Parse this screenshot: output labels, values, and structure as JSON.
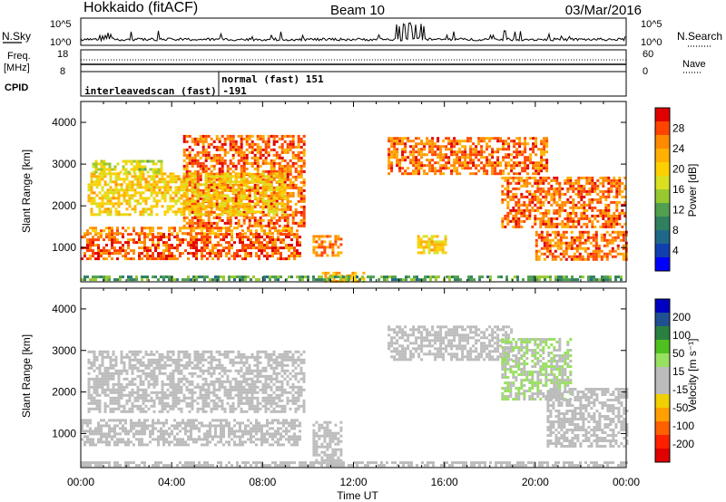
{
  "header": {
    "site": "Hokkaido (fitACF)",
    "beam": "Beam 10",
    "date": "03/Mar/2016"
  },
  "top_panels": {
    "nsky_label": "N.Sky",
    "nsearch_label": "N.Search",
    "log_ticks": [
      "10^5",
      "10^0"
    ],
    "freq_label_1": "Freq.",
    "freq_label_2": "[MHz]",
    "freq_ticks": [
      "18",
      "8"
    ],
    "nave_ticks": [
      "60",
      "0"
    ],
    "nave_label": "Nave",
    "cpid_label": "CPID",
    "cpid_names": [
      "normal (fast) 151",
      "interleavedscan (fast) -191"
    ]
  },
  "colorbars": {
    "power": {
      "label": "Power [dB]",
      "ticks": [
        "28",
        "24",
        "20",
        "16",
        "12",
        "8",
        "4"
      ],
      "colors": [
        "#e00000",
        "#ff4400",
        "#ff8a00",
        "#ffb000",
        "#ffd000",
        "#d8e020",
        "#98c830",
        "#50a050",
        "#308060",
        "#206888",
        "#1040b0",
        "#0000ff"
      ]
    },
    "velocity": {
      "label": "Velocity [m s⁻¹]",
      "ticks": [
        "200",
        "100",
        "50",
        "15",
        "-15",
        "-50",
        "-100",
        "-200"
      ],
      "colors": [
        "#0000c0",
        "#205090",
        "#2a8040",
        "#50c020",
        "#98e060",
        "#bcbcbc",
        "#bcbcbc",
        "#f0d000",
        "#ffa000",
        "#ff6000",
        "#ff2000",
        "#e00000"
      ]
    }
  },
  "chart_data": [
    {
      "type": "heatmap",
      "title": "",
      "xlabel": "Time UT",
      "ylabel": "Slant Range [km]",
      "x_ticks": [
        "00:00",
        "04:00",
        "08:00",
        "12:00",
        "16:00",
        "20:00",
        "00:00"
      ],
      "y_ticks": [
        1000,
        2000,
        3000,
        4000
      ],
      "xlim_hours": [
        0,
        24
      ],
      "ylim_km": [
        180,
        4500
      ],
      "colorbar": "Power [dB]",
      "bands": [
        {
          "t0": 0.0,
          "t1": 9.6,
          "r0": 700,
          "r1": 1350,
          "value": 27
        },
        {
          "t0": 0.0,
          "t1": 9.5,
          "r0": 1350,
          "r1": 1500,
          "value": 24
        },
        {
          "t0": 4.5,
          "t1": 9.8,
          "r0": 1500,
          "r1": 3700,
          "value": 26
        },
        {
          "t0": 0.3,
          "t1": 9.0,
          "r0": 1800,
          "r1": 2800,
          "value": 20
        },
        {
          "t0": 0.5,
          "t1": 3.5,
          "r0": 2800,
          "r1": 3100,
          "value": 17
        },
        {
          "t0": 10.2,
          "t1": 11.5,
          "r0": 800,
          "r1": 1300,
          "value": 25
        },
        {
          "t0": 10.6,
          "t1": 12.5,
          "r0": 220,
          "r1": 420,
          "value": 22
        },
        {
          "t0": 13.5,
          "t1": 20.5,
          "r0": 2750,
          "r1": 3650,
          "value": 26
        },
        {
          "t0": 18.5,
          "t1": 24.0,
          "r0": 1500,
          "r1": 2700,
          "value": 26
        },
        {
          "t0": 20.0,
          "t1": 24.0,
          "r0": 700,
          "r1": 1400,
          "value": 26
        },
        {
          "t0": 14.8,
          "t1": 16.0,
          "r0": 900,
          "r1": 1300,
          "value": 20
        },
        {
          "t0": 0.0,
          "t1": 24.0,
          "r0": 200,
          "r1": 330,
          "value": 12
        }
      ]
    },
    {
      "type": "heatmap",
      "title": "",
      "xlabel": "Time UT",
      "ylabel": "Slant Range [km]",
      "x_ticks": [
        "00:00",
        "04:00",
        "08:00",
        "12:00",
        "16:00",
        "20:00",
        "00:00"
      ],
      "y_ticks": [
        1000,
        2000,
        3000,
        4000
      ],
      "xlim_hours": [
        0,
        24
      ],
      "ylim_km": [
        180,
        4500
      ],
      "colorbar": "Velocity [m s⁻¹]",
      "bands": [
        {
          "t0": 0.0,
          "t1": 9.6,
          "r0": 700,
          "r1": 1350,
          "value": 0
        },
        {
          "t0": 0.3,
          "t1": 9.8,
          "r0": 1500,
          "r1": 3000,
          "value": 0
        },
        {
          "t0": 10.2,
          "t1": 11.5,
          "r0": 300,
          "r1": 1300,
          "value": 0
        },
        {
          "t0": 13.5,
          "t1": 19.0,
          "r0": 2750,
          "r1": 3600,
          "value": 0
        },
        {
          "t0": 18.5,
          "t1": 21.5,
          "r0": 1800,
          "r1": 3300,
          "value": 40
        },
        {
          "t0": 20.5,
          "t1": 24.0,
          "r0": 700,
          "r1": 2100,
          "value": 0
        },
        {
          "t0": 0.0,
          "t1": 24.0,
          "r0": 200,
          "r1": 330,
          "value": -20
        }
      ]
    }
  ]
}
